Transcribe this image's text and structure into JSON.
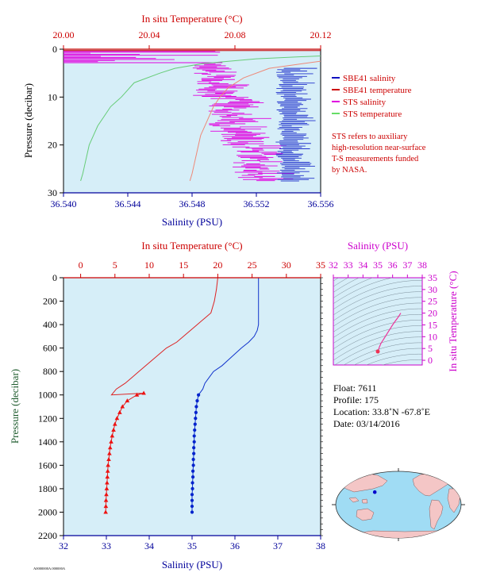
{
  "chart_data": [
    {
      "id": "surface",
      "type": "line",
      "top_axis_label": "In situ Temperature (°C)",
      "top_ticks": [
        "20.00",
        "20.04",
        "20.08",
        "20.12"
      ],
      "top_range": [
        20.0,
        20.12
      ],
      "bottom_axis_label": "Salinity (PSU)",
      "bottom_ticks": [
        "36.540",
        "36.544",
        "36.548",
        "36.552",
        "36.556"
      ],
      "bottom_range": [
        36.54,
        36.556
      ],
      "ylabel": "Pressure (decibar)",
      "y_ticks": [
        "0",
        "10",
        "20",
        "30"
      ],
      "ylim": [
        0,
        30
      ],
      "legend": [
        "SBE41 salinity",
        "SBE41 temperature",
        "STS salinity",
        "STS temperature"
      ],
      "legend_colors": [
        "#1010c0",
        "#cc0000",
        "#e000e0",
        "#66dd66"
      ],
      "note": [
        "STS refers to auxiliary",
        "high-resolution near-surface",
        "T-S measurements funded",
        "by NASA."
      ],
      "sts_temperature": {
        "pressure": [
          1.4,
          2,
          3,
          4,
          5,
          7,
          9,
          10,
          12,
          14,
          16,
          18,
          20,
          22,
          24,
          26,
          27.5
        ],
        "temperature": [
          20.12,
          20.09,
          20.065,
          20.052,
          20.045,
          20.033,
          20.029,
          20.027,
          20.022,
          20.019,
          20.016,
          20.014,
          20.012,
          20.011,
          20.01,
          20.009,
          20.008
        ]
      },
      "sts_temperature_salinity_trace": {
        "pressure": [
          2.5,
          4,
          6,
          8,
          10,
          12,
          14,
          16,
          18,
          20,
          22,
          24,
          26,
          27.5
        ],
        "temperature": [
          20.12,
          20.096,
          20.084,
          20.077,
          20.073,
          20.07,
          20.068,
          20.066,
          20.064,
          20.063,
          20.062,
          20.061,
          20.06,
          20.059
        ]
      }
    },
    {
      "id": "profile",
      "type": "line",
      "top_axis_label": "In situ Temperature (°C)",
      "top_ticks": [
        "0",
        "5",
        "10",
        "15",
        "20",
        "25",
        "30",
        "35"
      ],
      "top_range": [
        -2.5,
        35
      ],
      "bottom_axis_label": "Salinity (PSU)",
      "bottom_ticks": [
        "32",
        "33",
        "34",
        "35",
        "36",
        "37",
        "38"
      ],
      "bottom_range": [
        32,
        38
      ],
      "ylabel": "Pressure (decibar)",
      "y_ticks": [
        "0",
        "200",
        "400",
        "600",
        "800",
        "1000",
        "1200",
        "1400",
        "1600",
        "1800",
        "2000",
        "2200"
      ],
      "ylim": [
        0,
        2200
      ],
      "temperature_profile": {
        "pressure": [
          0,
          100,
          200,
          300,
          350,
          400,
          450,
          500,
          550,
          600,
          650,
          700,
          750,
          800,
          850,
          900,
          950,
          1000
        ],
        "temperature": [
          20.0,
          19.8,
          19.5,
          19.0,
          18.0,
          17.0,
          16.0,
          15.0,
          14.0,
          12.5,
          11.5,
          10.5,
          9.5,
          8.5,
          7.5,
          6.5,
          5.2,
          4.5
        ]
      },
      "temperature_markers": {
        "pressure": [
          985,
          1000,
          1050,
          1100,
          1150,
          1200,
          1250,
          1300,
          1350,
          1400,
          1450,
          1500,
          1550,
          1600,
          1650,
          1700,
          1750,
          1800,
          1850,
          1900,
          1950,
          2000
        ],
        "temperature": [
          9.2,
          8.2,
          6.8,
          6.1,
          5.7,
          5.3,
          5.0,
          4.8,
          4.6,
          4.45,
          4.3,
          4.2,
          4.1,
          4.0,
          3.95,
          3.9,
          3.85,
          3.8,
          3.75,
          3.7,
          3.68,
          3.65
        ]
      },
      "salinity_profile": {
        "pressure": [
          0,
          100,
          200,
          300,
          400,
          450,
          500,
          550,
          600,
          650,
          700,
          750,
          800,
          850,
          900,
          950,
          1000
        ],
        "salinity": [
          36.55,
          36.55,
          36.55,
          36.55,
          36.55,
          36.52,
          36.45,
          36.32,
          36.15,
          36.0,
          35.85,
          35.7,
          35.5,
          35.4,
          35.3,
          35.25,
          35.15
        ]
      },
      "salinity_markers": {
        "pressure": [
          1000,
          1050,
          1100,
          1150,
          1200,
          1250,
          1300,
          1350,
          1400,
          1450,
          1500,
          1550,
          1600,
          1650,
          1700,
          1750,
          1800,
          1850,
          1900,
          1950,
          2000
        ],
        "salinity": [
          35.15,
          35.12,
          35.1,
          35.09,
          35.08,
          35.07,
          35.06,
          35.05,
          35.05,
          35.04,
          35.04,
          35.03,
          35.03,
          35.02,
          35.02,
          35.01,
          35.01,
          35.0,
          35.0,
          35.0,
          35.0
        ]
      }
    },
    {
      "id": "ts",
      "type": "scatter",
      "top_axis_label": "Salinity (PSU)",
      "top_ticks": [
        "32",
        "33",
        "34",
        "35",
        "36",
        "37",
        "38"
      ],
      "top_range": [
        32,
        38
      ],
      "right_axis_label": "In situ Temperature (°C)",
      "right_ticks": [
        "0",
        "5",
        "10",
        "15",
        "20",
        "25",
        "30",
        "35"
      ],
      "right_range": [
        -2,
        35
      ],
      "curve": {
        "salinity": [
          35.0,
          35.05,
          35.1,
          35.2,
          35.4,
          35.6,
          35.8,
          36.0,
          36.2,
          36.4,
          36.55
        ],
        "temperature": [
          3.7,
          4.5,
          5.5,
          7.0,
          9.0,
          11.0,
          13.0,
          15.0,
          16.8,
          18.5,
          20.0
        ]
      }
    }
  ],
  "float_info": {
    "float": "Float:  7611",
    "profile": "Profile:  175",
    "location": "Location:  33.8˚N  -67.8˚E",
    "date": "Date:  03/14/2016"
  },
  "map": {
    "marker_lon": -67.8,
    "marker_lat": 33.8,
    "ocean_color": "#a0dcf4",
    "land_color": "#f4c6c6",
    "marker_color": "#0000cc"
  },
  "footer_code": "A0000000A.000000A"
}
